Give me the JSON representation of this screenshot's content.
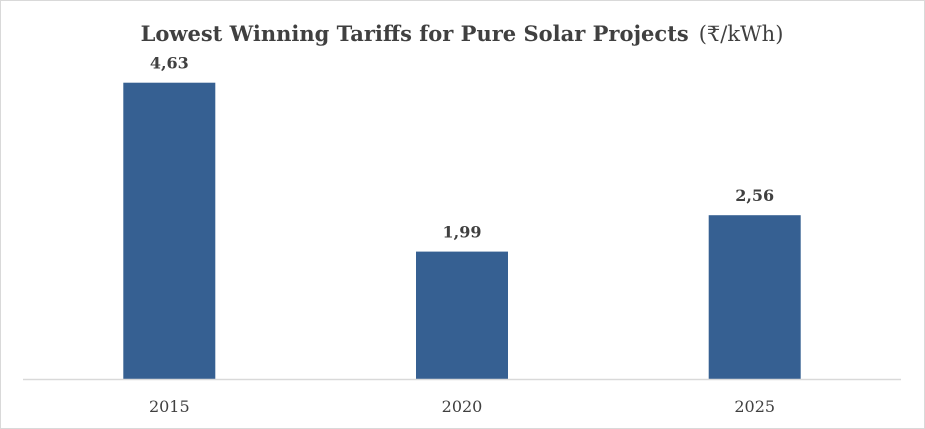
{
  "chart_data": {
    "type": "bar",
    "title": "Lowest Winning Tariffs for Pure Solar Projects",
    "title_unit": "(₹/kWh)",
    "categories": [
      "2015",
      "2020",
      "2025"
    ],
    "values": [
      4.63,
      1.99,
      2.56
    ],
    "data_labels": [
      "4,63",
      "1,99",
      "2,56"
    ],
    "xlabel": "",
    "ylabel": "",
    "ylim": [
      0,
      5
    ],
    "grid": false,
    "legend": "none",
    "bar_color": "#366092",
    "axis_color": "#d9d9d9",
    "text_color": "#404040"
  }
}
